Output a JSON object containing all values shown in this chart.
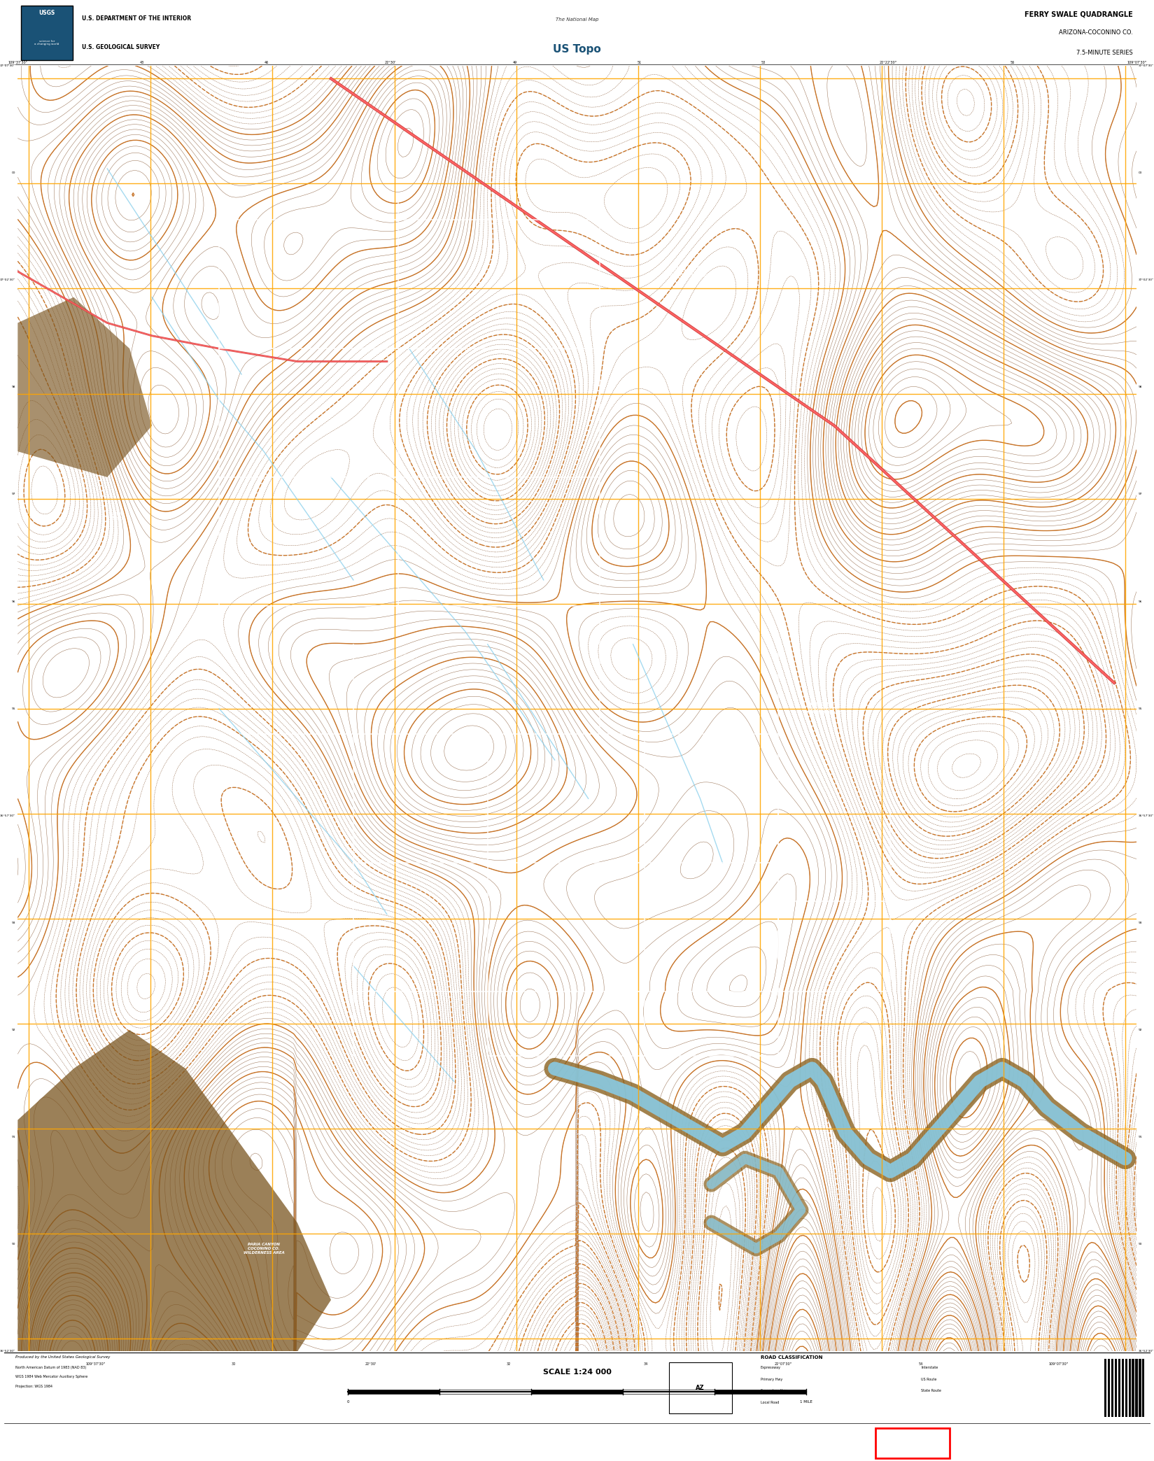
{
  "title_right_line1": "FERRY SWALE QUADRANGLE",
  "title_right_line2": "ARIZONA-COCONINO CO.",
  "title_right_line3": "7.5-MINUTE SERIES",
  "header_left_line1": "U.S. DEPARTMENT OF THE INTERIOR",
  "header_left_line2": "U.S. GEOLOGICAL SURVEY",
  "header_center": "US Topo",
  "scale_text": "SCALE 1:24 000",
  "produced_by": "Produced by the United States Geological Survey",
  "map_bg_color": "#000000",
  "white_bg": "#ffffff",
  "orange_grid_color": "#FFA500",
  "contour_color": "#8B5E3C",
  "contour_index_color": "#C87020",
  "water_color": "#87CEEB",
  "road_color_dark": "#CC3333",
  "road_color_light": "#FF6666",
  "white_line": "#ffffff",
  "sand_color": "#8B6914"
}
